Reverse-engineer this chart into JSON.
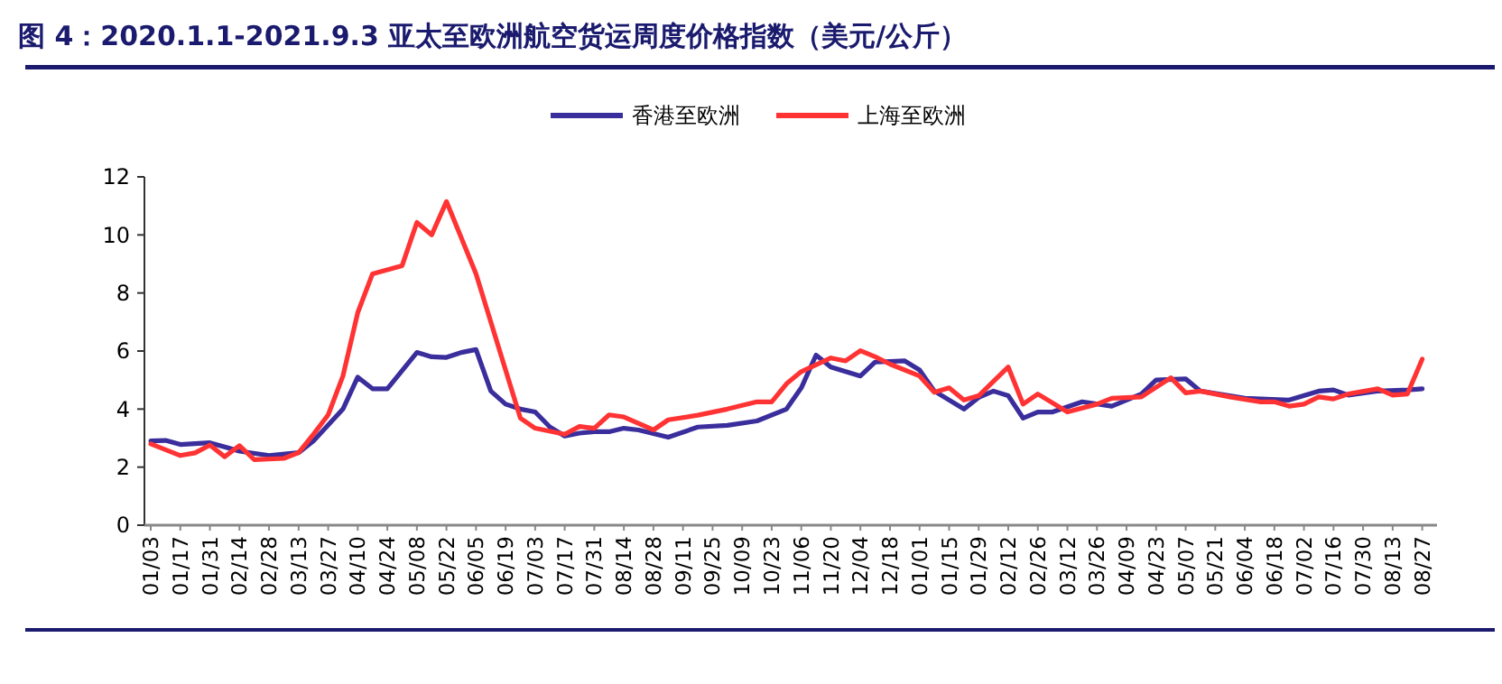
{
  "chart_data": {
    "type": "line",
    "title": "图 4：2020.1.1-2021.9.3 亚太至欧洲航空货运周度价格指数（美元/公斤）",
    "legend": "top",
    "grid": false,
    "marker": "none",
    "line_style": "solid",
    "xlim": [
      "2019-12-31",
      "2021-09-03"
    ],
    "ylim": [
      0,
      12
    ],
    "yticks": [
      0,
      2,
      4,
      6,
      8,
      10,
      12
    ],
    "xticks": [
      {
        "value": "2020-01-03",
        "label": "01/03"
      },
      {
        "value": "2020-01-17",
        "label": "01/17"
      },
      {
        "value": "2020-01-31",
        "label": "01/31"
      },
      {
        "value": "2020-02-14",
        "label": "02/14"
      },
      {
        "value": "2020-02-28",
        "label": "02/28"
      },
      {
        "value": "2020-03-13",
        "label": "03/13"
      },
      {
        "value": "2020-03-27",
        "label": "03/27"
      },
      {
        "value": "2020-04-10",
        "label": "04/10"
      },
      {
        "value": "2020-04-24",
        "label": "04/24"
      },
      {
        "value": "2020-05-08",
        "label": "05/08"
      },
      {
        "value": "2020-05-22",
        "label": "05/22"
      },
      {
        "value": "2020-06-05",
        "label": "06/05"
      },
      {
        "value": "2020-06-19",
        "label": "06/19"
      },
      {
        "value": "2020-07-03",
        "label": "07/03"
      },
      {
        "value": "2020-07-17",
        "label": "07/17"
      },
      {
        "value": "2020-07-31",
        "label": "07/31"
      },
      {
        "value": "2020-08-14",
        "label": "08/14"
      },
      {
        "value": "2020-08-28",
        "label": "08/28"
      },
      {
        "value": "2020-09-11",
        "label": "09/11"
      },
      {
        "value": "2020-09-25",
        "label": "09/25"
      },
      {
        "value": "2020-10-09",
        "label": "10/09"
      },
      {
        "value": "2020-10-23",
        "label": "10/23"
      },
      {
        "value": "2020-11-06",
        "label": "11/06"
      },
      {
        "value": "2020-11-20",
        "label": "11/20"
      },
      {
        "value": "2020-12-04",
        "label": "12/04"
      },
      {
        "value": "2020-12-18",
        "label": "12/18"
      },
      {
        "value": "2021-01-01",
        "label": "01/01"
      },
      {
        "value": "2021-01-15",
        "label": "01/15"
      },
      {
        "value": "2021-01-29",
        "label": "01/29"
      },
      {
        "value": "2021-02-12",
        "label": "02/12"
      },
      {
        "value": "2021-02-26",
        "label": "02/26"
      },
      {
        "value": "2021-03-12",
        "label": "03/12"
      },
      {
        "value": "2021-03-26",
        "label": "03/26"
      },
      {
        "value": "2021-04-09",
        "label": "04/09"
      },
      {
        "value": "2021-04-23",
        "label": "04/23"
      },
      {
        "value": "2021-05-07",
        "label": "05/07"
      },
      {
        "value": "2021-05-21",
        "label": "05/21"
      },
      {
        "value": "2021-06-04",
        "label": "06/04"
      },
      {
        "value": "2021-06-18",
        "label": "06/18"
      },
      {
        "value": "2021-07-02",
        "label": "07/02"
      },
      {
        "value": "2021-07-16",
        "label": "07/16"
      },
      {
        "value": "2021-07-30",
        "label": "07/30"
      },
      {
        "value": "2021-08-13",
        "label": "08/13"
      },
      {
        "value": "2021-08-27",
        "label": "08/27"
      }
    ],
    "series": [
      {
        "name": "香港至欧洲",
        "color": "#3a2d9c",
        "x": [
          "2020-01-03",
          "2020-01-10",
          "2020-01-17",
          "2020-01-31",
          "2020-02-14",
          "2020-02-28",
          "2020-03-13",
          "2020-03-20",
          "2020-04-03",
          "2020-04-10",
          "2020-04-17",
          "2020-04-24",
          "2020-05-08",
          "2020-05-15",
          "2020-05-22",
          "2020-05-29",
          "2020-06-05",
          "2020-06-12",
          "2020-06-19",
          "2020-06-26",
          "2020-07-03",
          "2020-07-10",
          "2020-07-17",
          "2020-07-24",
          "2020-07-31",
          "2020-08-07",
          "2020-08-14",
          "2020-08-21",
          "2020-09-04",
          "2020-09-18",
          "2020-10-02",
          "2020-10-16",
          "2020-10-30",
          "2020-11-06",
          "2020-11-13",
          "2020-11-20",
          "2020-12-04",
          "2020-12-11",
          "2020-12-25",
          "2021-01-01",
          "2021-01-08",
          "2021-01-22",
          "2021-01-29",
          "2021-02-05",
          "2021-02-12",
          "2021-02-19",
          "2021-02-26",
          "2021-03-05",
          "2021-03-19",
          "2021-04-02",
          "2021-04-16",
          "2021-04-23",
          "2021-05-07",
          "2021-05-14",
          "2021-06-04",
          "2021-06-25",
          "2021-07-09",
          "2021-07-16",
          "2021-07-23",
          "2021-08-06",
          "2021-08-20",
          "2021-08-27"
        ],
        "values": [
          2.9,
          2.92,
          2.78,
          2.84,
          2.55,
          2.4,
          2.5,
          2.9,
          4.0,
          5.1,
          4.7,
          4.7,
          5.95,
          5.8,
          5.78,
          5.95,
          6.05,
          4.62,
          4.17,
          4.0,
          3.9,
          3.38,
          3.07,
          3.17,
          3.22,
          3.22,
          3.34,
          3.28,
          3.03,
          3.38,
          3.44,
          3.59,
          4.0,
          4.73,
          5.86,
          5.45,
          5.14,
          5.62,
          5.66,
          5.35,
          4.62,
          4.0,
          4.4,
          4.62,
          4.46,
          3.69,
          3.9,
          3.9,
          4.25,
          4.1,
          4.52,
          5.0,
          5.04,
          4.62,
          4.37,
          4.31,
          4.62,
          4.66,
          4.48,
          4.62,
          4.66,
          4.7
        ]
      },
      {
        "name": "上海至欧洲",
        "color": "#ff3333",
        "x": [
          "2020-01-03",
          "2020-01-17",
          "2020-01-24",
          "2020-01-31",
          "2020-02-07",
          "2020-02-14",
          "2020-02-21",
          "2020-03-06",
          "2020-03-13",
          "2020-03-20",
          "2020-03-27",
          "2020-04-03",
          "2020-04-10",
          "2020-04-17",
          "2020-05-01",
          "2020-05-08",
          "2020-05-15",
          "2020-05-22",
          "2020-06-05",
          "2020-06-26",
          "2020-07-03",
          "2020-07-17",
          "2020-07-24",
          "2020-07-31",
          "2020-08-07",
          "2020-08-14",
          "2020-08-28",
          "2020-09-04",
          "2020-09-18",
          "2020-10-02",
          "2020-10-16",
          "2020-10-23",
          "2020-10-30",
          "2020-11-06",
          "2020-11-20",
          "2020-11-27",
          "2020-12-04",
          "2020-12-11",
          "2020-12-18",
          "2021-01-01",
          "2021-01-08",
          "2021-01-15",
          "2021-01-22",
          "2021-01-29",
          "2021-02-12",
          "2021-02-19",
          "2021-02-26",
          "2021-03-12",
          "2021-03-26",
          "2021-04-02",
          "2021-04-16",
          "2021-04-30",
          "2021-05-07",
          "2021-05-14",
          "2021-05-28",
          "2021-06-11",
          "2021-06-18",
          "2021-06-25",
          "2021-07-02",
          "2021-07-09",
          "2021-07-16",
          "2021-07-23",
          "2021-08-06",
          "2021-08-13",
          "2021-08-20",
          "2021-08-27"
        ],
        "values": [
          2.8,
          2.4,
          2.49,
          2.76,
          2.36,
          2.74,
          2.26,
          2.3,
          2.5,
          3.13,
          3.8,
          5.14,
          7.32,
          8.66,
          8.94,
          10.43,
          10.0,
          11.15,
          8.66,
          3.69,
          3.34,
          3.13,
          3.4,
          3.34,
          3.8,
          3.73,
          3.28,
          3.63,
          3.79,
          4.0,
          4.25,
          4.25,
          4.87,
          5.29,
          5.76,
          5.66,
          6.01,
          5.8,
          5.55,
          5.14,
          4.58,
          4.73,
          4.31,
          4.46,
          5.45,
          4.17,
          4.52,
          3.9,
          4.17,
          4.37,
          4.42,
          5.08,
          4.56,
          4.62,
          4.42,
          4.25,
          4.25,
          4.1,
          4.17,
          4.42,
          4.35,
          4.52,
          4.7,
          4.48,
          4.52,
          5.72
        ]
      }
    ]
  }
}
